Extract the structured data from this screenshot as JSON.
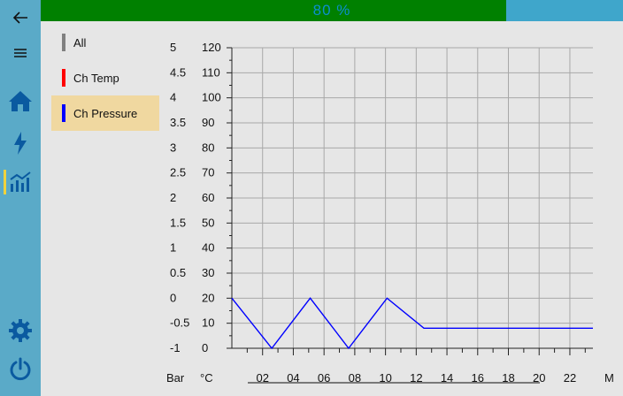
{
  "progress": {
    "label": "80 %",
    "percent": 80
  },
  "nav": {
    "items": [
      {
        "id": "back",
        "icon": "back-arrow-icon"
      },
      {
        "id": "menu",
        "icon": "hamburger-menu-icon"
      },
      {
        "id": "home",
        "icon": "home-icon"
      },
      {
        "id": "power",
        "icon": "lightning-bolt-icon"
      },
      {
        "id": "charts",
        "icon": "bar-chart-icon",
        "active": true
      },
      {
        "id": "settings",
        "icon": "gear-icon"
      },
      {
        "id": "shutdown",
        "icon": "power-icon"
      }
    ],
    "active_color": "#f0d23c"
  },
  "channels": [
    {
      "label": "All",
      "color": "#808080",
      "selected": false
    },
    {
      "label": "Ch Temp",
      "color": "#ff0000",
      "selected": false
    },
    {
      "label": "Ch Pressure",
      "color": "#0000ff",
      "selected": true
    }
  ],
  "axes": {
    "pressure_unit": "Bar",
    "temp_unit": "°C",
    "time_unit": "M",
    "pressure_ticks": [
      "5",
      "4.5",
      "4",
      "3.5",
      "3",
      "2.5",
      "2",
      "1.5",
      "1",
      "0.5",
      "0",
      "-0.5",
      "-1"
    ],
    "temp_ticks": [
      "120",
      "110",
      "100",
      "90",
      "80",
      "70",
      "60",
      "50",
      "40",
      "30",
      "20",
      "10",
      "0"
    ],
    "time_ticks": [
      "02",
      "04",
      "06",
      "08",
      "10",
      "12",
      "14",
      "16",
      "18",
      "20",
      "22"
    ]
  },
  "chart_data": {
    "type": "line",
    "xlim": [
      0,
      23.5
    ],
    "ylim_temp": [
      0,
      120
    ],
    "ylim_pressure": [
      -1,
      5
    ],
    "grid": true,
    "series": [
      {
        "name": "Ch Pressure",
        "color": "#0000ff",
        "x": [
          0,
          2.6,
          5.1,
          7.6,
          10.1,
          12.5,
          23.5
        ],
        "y": [
          0,
          -1,
          0,
          -1,
          0,
          -0.6,
          -0.6
        ]
      }
    ]
  }
}
